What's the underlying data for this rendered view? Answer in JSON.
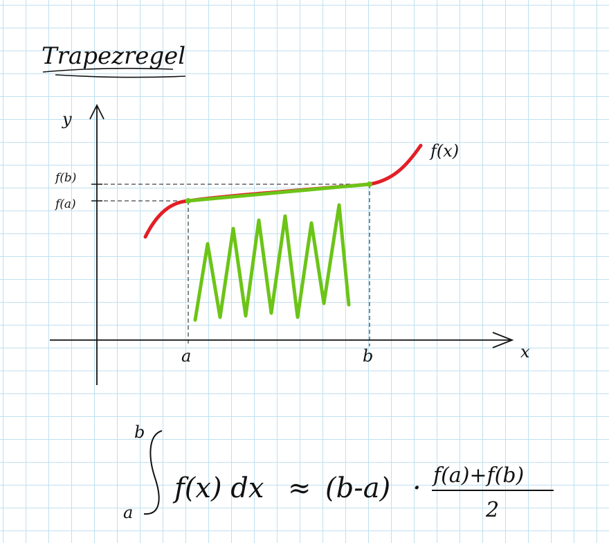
{
  "title": "Trapezregel",
  "axes": {
    "y_label": "y",
    "x_label": "x"
  },
  "ticks": {
    "a": "a",
    "b": "b",
    "fa": "f(a)",
    "fb": "f(b)"
  },
  "curve_label": "f(x)",
  "formula": {
    "upper": "b",
    "lower": "a",
    "integrand": "f(x) dx",
    "approx": "≈",
    "width": "(b-a)",
    "dot": "·",
    "numerator": "f(a)+f(b)",
    "denominator": "2"
  },
  "colors": {
    "curve": "#e21f26",
    "trapezoid": "#6cc417",
    "ink": "#111111",
    "grid": "#bfe0ef"
  }
}
